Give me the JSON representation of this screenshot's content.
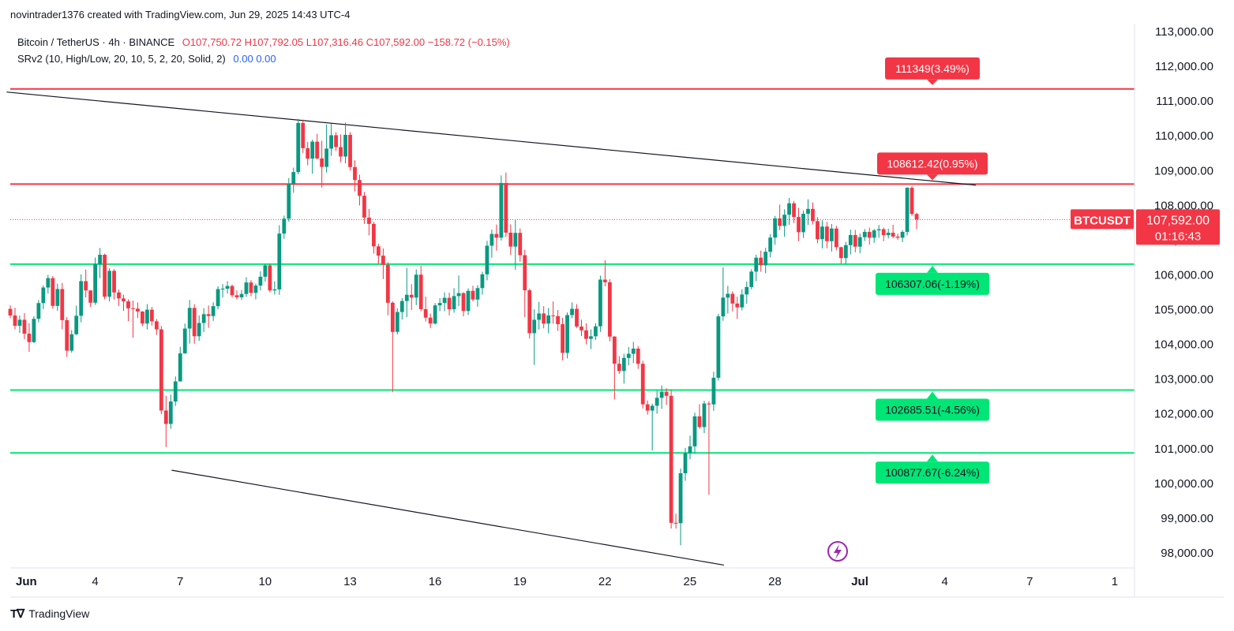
{
  "header": {
    "credit": "novintrader1376 created with TradingView.com, Jun 29, 2025 14:43 UTC-4",
    "symbol": "Bitcoin / TetherUS · 4h · BINANCE",
    "open": "O107,750.72",
    "high": "H107,792.05",
    "low": "L107,316.46",
    "close": "C107,592.00",
    "change": "−158.72 (−0.15%)",
    "indicator": "SRv2 (10, High/Low, 20, 10, 5, 2, 20, Solid, 2)",
    "ind_val1": "0.00",
    "ind_val2": "0.00"
  },
  "brand": {
    "label": "TradingView"
  },
  "colors": {
    "up": "#089981",
    "down": "#F23645",
    "support": "#00E676",
    "resistance": "#F23645",
    "trendline": "#131722"
  },
  "chart_data": {
    "type": "candlestick",
    "title": "Bitcoin / TetherUS · 4h · BINANCE",
    "xlabel": "",
    "ylabel": "",
    "ylim": [
      97500,
      113200
    ],
    "y_ticks": [
      "113,000.00",
      "112,000.00",
      "111,000.00",
      "110,000.00",
      "109,000.00",
      "108,000.00",
      "107,000.00",
      "106,000.00",
      "105,000.00",
      "104,000.00",
      "103,000.00",
      "102,000.00",
      "101,000.00",
      "100,000.00",
      "99,000.00",
      "98,000.00"
    ],
    "x_ticks": [
      "Jun",
      "4",
      "7",
      "10",
      "13",
      "16",
      "19",
      "22",
      "25",
      "28",
      "Jul",
      "4",
      "7",
      "1"
    ],
    "x_tick_days": [
      1,
      4,
      7,
      10,
      13,
      16,
      19,
      22,
      25,
      28,
      31,
      34,
      37,
      40
    ],
    "x_range_days": [
      1.0,
      40.7
    ],
    "last_price": {
      "symbol": "BTCUSDT",
      "price": "107,592.00",
      "countdown": "01:16:43",
      "value": 107592
    },
    "levels": [
      {
        "label": "111349(3.49%)",
        "value": 111349,
        "kind": "resistance"
      },
      {
        "label": "108612.42(0.95%)",
        "value": 108612.42,
        "kind": "resistance"
      },
      {
        "label": "106307.06(-1.19%)",
        "value": 106307.06,
        "kind": "support"
      },
      {
        "label": "102685.51(-4.56%)",
        "value": 102685.51,
        "kind": "support"
      },
      {
        "label": "100877.67(-6.24%)",
        "value": 100877.67,
        "kind": "support"
      }
    ],
    "trendlines": [
      {
        "name": "upper",
        "start": [
          0.87,
          111260
        ],
        "end": [
          35.1,
          108580
        ]
      },
      {
        "name": "lower",
        "start": [
          6.7,
          100380
        ],
        "end": [
          26.2,
          97650
        ]
      }
    ],
    "candle_start_day": 1.0,
    "candle_step_days": 0.1667,
    "candles": [
      [
        105022,
        105123,
        104750,
        104832
      ],
      [
        104832,
        105054,
        104433,
        104535
      ],
      [
        104535,
        104832,
        104329,
        104708
      ],
      [
        104708,
        104902,
        104152,
        104308
      ],
      [
        104308,
        104608,
        103785,
        104065
      ],
      [
        104065,
        104810,
        104040,
        104735
      ],
      [
        104735,
        105275,
        104635,
        105188
      ],
      [
        105188,
        105697,
        105013,
        105635
      ],
      [
        105635,
        106002,
        105466,
        105906
      ],
      [
        105906,
        105964,
        105026,
        105107
      ],
      [
        105107,
        105744,
        104968,
        105592
      ],
      [
        105592,
        105767,
        104434,
        104697
      ],
      [
        104697,
        104783,
        103639,
        103819
      ],
      [
        103819,
        104412,
        103760,
        104291
      ],
      [
        104291,
        105113,
        104269,
        104822
      ],
      [
        104822,
        106016,
        104637,
        105819
      ],
      [
        105819,
        106156,
        105351,
        105551
      ],
      [
        105551,
        105557,
        105077,
        105199
      ],
      [
        105199,
        106498,
        105138,
        106308
      ],
      [
        106308,
        106773,
        105904,
        106578
      ],
      [
        106578,
        106608,
        105294,
        105370
      ],
      [
        105370,
        106190,
        105233,
        106115
      ],
      [
        106115,
        106165,
        105292,
        105494
      ],
      [
        105494,
        105577,
        105107,
        105322
      ],
      [
        105322,
        105427,
        104961,
        105237
      ],
      [
        105237,
        105297,
        104673,
        105037
      ],
      [
        105037,
        105260,
        104192,
        105027
      ],
      [
        105027,
        105204,
        104757,
        104945
      ],
      [
        104945,
        104957,
        104524,
        104600
      ],
      [
        104600,
        105159,
        104428,
        104998
      ],
      [
        104998,
        105078,
        104540,
        104663
      ],
      [
        104663,
        104729,
        104275,
        104432
      ],
      [
        104432,
        104529,
        101991,
        102097
      ],
      [
        102097,
        102520,
        101047,
        101711
      ],
      [
        101711,
        102556,
        101574,
        102356
      ],
      [
        102356,
        103076,
        102230,
        102934
      ],
      [
        102934,
        103930,
        102934,
        103741
      ],
      [
        103741,
        104597,
        103731,
        104455
      ],
      [
        104455,
        105278,
        104022,
        105050
      ],
      [
        105050,
        105156,
        104017,
        104234
      ],
      [
        104234,
        104834,
        104102,
        104615
      ],
      [
        104615,
        105040,
        104356,
        104869
      ],
      [
        104869,
        105119,
        104474,
        104815
      ],
      [
        104815,
        105210,
        104676,
        105099
      ],
      [
        105099,
        105670,
        105009,
        105590
      ],
      [
        105590,
        105732,
        105349,
        105602
      ],
      [
        105602,
        105818,
        105461,
        105679
      ],
      [
        105679,
        105722,
        105349,
        105413
      ],
      [
        105413,
        105553,
        105290,
        105353
      ],
      [
        105353,
        105568,
        105273,
        105450
      ],
      [
        105450,
        105934,
        105369,
        105781
      ],
      [
        105781,
        105848,
        105384,
        105482
      ],
      [
        105482,
        105745,
        105295,
        105691
      ],
      [
        105691,
        106101,
        105554,
        105946
      ],
      [
        105946,
        106315,
        105806,
        106274
      ],
      [
        106274,
        106326,
        105498,
        105552
      ],
      [
        105552,
        105813,
        105434,
        105583
      ],
      [
        105583,
        107427,
        105425,
        107187
      ],
      [
        107187,
        107703,
        107038,
        107617
      ],
      [
        107617,
        108785,
        107532,
        108629
      ],
      [
        108629,
        109084,
        108362,
        108958
      ],
      [
        108958,
        110487,
        108892,
        110369
      ],
      [
        110369,
        110467,
        109509,
        109646
      ],
      [
        109646,
        109825,
        109154,
        109344
      ],
      [
        109344,
        109891,
        108908,
        109832
      ],
      [
        109832,
        110060,
        109323,
        109350
      ],
      [
        109350,
        109860,
        108510,
        109106
      ],
      [
        109106,
        110324,
        108942,
        109632
      ],
      [
        109632,
        110350,
        109427,
        110017
      ],
      [
        110017,
        110104,
        109565,
        109676
      ],
      [
        109676,
        110041,
        109239,
        109404
      ],
      [
        109404,
        110380,
        109208,
        110029
      ],
      [
        110029,
        110106,
        108999,
        109101
      ],
      [
        109101,
        109295,
        108401,
        108727
      ],
      [
        108727,
        108881,
        107997,
        108275
      ],
      [
        108275,
        108388,
        107467,
        107648
      ],
      [
        107648,
        107896,
        107135,
        107466
      ],
      [
        107466,
        107524,
        106612,
        106820
      ],
      [
        106820,
        106895,
        106312,
        106552
      ],
      [
        106552,
        106760,
        105877,
        106287
      ],
      [
        106287,
        106365,
        104838,
        105198
      ],
      [
        105198,
        105242,
        102622,
        104359
      ],
      [
        104359,
        105034,
        104287,
        104931
      ],
      [
        104931,
        105329,
        104715,
        105247
      ],
      [
        105247,
        106201,
        104782,
        105426
      ],
      [
        105426,
        105733,
        104988,
        105346
      ],
      [
        105346,
        106160,
        105132,
        106006
      ],
      [
        106006,
        106263,
        104952,
        105014
      ],
      [
        105014,
        105373,
        104657,
        104769
      ],
      [
        104769,
        104885,
        104470,
        104599
      ],
      [
        104599,
        105189,
        104573,
        105122
      ],
      [
        105122,
        105333,
        104954,
        105191
      ],
      [
        105191,
        105494,
        104952,
        105339
      ],
      [
        105339,
        105489,
        104834,
        105011
      ],
      [
        105011,
        105617,
        104909,
        105389
      ],
      [
        105389,
        105982,
        105104,
        105474
      ],
      [
        105474,
        105500,
        104806,
        104961
      ],
      [
        104961,
        105611,
        104844,
        105540
      ],
      [
        105540,
        105685,
        105236,
        105290
      ],
      [
        105290,
        105701,
        105085,
        105619
      ],
      [
        105619,
        106091,
        105432,
        106015
      ],
      [
        106015,
        106980,
        105842,
        106839
      ],
      [
        106839,
        107300,
        106496,
        107177
      ],
      [
        107177,
        107448,
        106698,
        107070
      ],
      [
        107070,
        108861,
        106987,
        108643
      ],
      [
        108643,
        108945,
        107087,
        107214
      ],
      [
        107214,
        107452,
        106573,
        106814
      ],
      [
        106814,
        107580,
        106143,
        107208
      ],
      [
        107208,
        107335,
        106379,
        106566
      ],
      [
        106566,
        106721,
        104786,
        105556
      ],
      [
        105556,
        105605,
        104167,
        104322
      ],
      [
        104322,
        105007,
        103408,
        104708
      ],
      [
        104708,
        105222,
        104427,
        104889
      ],
      [
        104889,
        105100,
        104460,
        104597
      ],
      [
        104597,
        105045,
        104321,
        104833
      ],
      [
        104833,
        105236,
        104595,
        104814
      ],
      [
        104814,
        104988,
        104386,
        104582
      ],
      [
        104582,
        104764,
        103541,
        103755
      ],
      [
        103755,
        104919,
        103597,
        104843
      ],
      [
        104843,
        105207,
        104751,
        105023
      ],
      [
        105023,
        105157,
        104471,
        104513
      ],
      [
        104513,
        104710,
        104238,
        104403
      ],
      [
        104403,
        104603,
        103999,
        104159
      ],
      [
        104159,
        104432,
        103865,
        104233
      ],
      [
        104233,
        104610,
        104129,
        104519
      ],
      [
        104519,
        105978,
        104358,
        105863
      ],
      [
        105863,
        106417,
        105670,
        105787
      ],
      [
        105787,
        105875,
        104085,
        104224
      ],
      [
        104224,
        104237,
        102416,
        103443
      ],
      [
        103443,
        103662,
        103148,
        103234
      ],
      [
        103234,
        103730,
        102871,
        103610
      ],
      [
        103610,
        103925,
        103401,
        103729
      ],
      [
        103729,
        104068,
        103460,
        103878
      ],
      [
        103878,
        103951,
        103297,
        103441
      ],
      [
        103441,
        103528,
        102155,
        102275
      ],
      [
        102275,
        102384,
        101978,
        102095
      ],
      [
        102095,
        102292,
        100947,
        102234
      ],
      [
        102234,
        102669,
        102005,
        102462
      ],
      [
        102462,
        102818,
        102142,
        102635
      ],
      [
        102635,
        102736,
        102258,
        102520
      ],
      [
        102520,
        102697,
        98704,
        98866
      ],
      [
        98866,
        99128,
        98702,
        98856
      ],
      [
        98856,
        100425,
        98220,
        100292
      ],
      [
        100292,
        101022,
        100077,
        100870
      ],
      [
        100870,
        101372,
        100695,
        101066
      ],
      [
        101066,
        102035,
        100861,
        101930
      ],
      [
        101930,
        102279,
        101576,
        101621
      ],
      [
        101621,
        102377,
        101448,
        102298
      ],
      [
        102298,
        102371,
        99674,
        102273
      ],
      [
        102273,
        103211,
        102090,
        103039
      ],
      [
        103039,
        104879,
        102957,
        104806
      ],
      [
        104806,
        106210,
        104678,
        105346
      ],
      [
        105346,
        105683,
        104887,
        105455
      ],
      [
        105455,
        105528,
        104946,
        105175
      ],
      [
        105175,
        105373,
        104731,
        105064
      ],
      [
        105064,
        105586,
        104979,
        105435
      ],
      [
        105435,
        105809,
        105171,
        105651
      ],
      [
        105651,
        106160,
        105588,
        106093
      ],
      [
        106093,
        106580,
        105817,
        106494
      ],
      [
        106494,
        106698,
        106089,
        106275
      ],
      [
        106275,
        106775,
        106044,
        106664
      ],
      [
        106664,
        107171,
        106502,
        107072
      ],
      [
        107072,
        107696,
        106866,
        107625
      ],
      [
        107625,
        108022,
        107289,
        107409
      ],
      [
        107409,
        107885,
        107095,
        107731
      ],
      [
        107731,
        108213,
        107436,
        108059
      ],
      [
        108059,
        108127,
        107491,
        107663
      ],
      [
        107663,
        107929,
        106970,
        107228
      ],
      [
        107228,
        107854,
        107062,
        107757
      ],
      [
        107757,
        108173,
        107436,
        107899
      ],
      [
        107899,
        108083,
        107450,
        107546
      ],
      [
        107546,
        107659,
        106911,
        107028
      ],
      [
        107028,
        107569,
        106763,
        107389
      ],
      [
        107389,
        107523,
        106767,
        106969
      ],
      [
        106969,
        107462,
        106672,
        107332
      ],
      [
        107332,
        107407,
        106707,
        106796
      ],
      [
        106796,
        106811,
        106320,
        106483
      ],
      [
        106483,
        106950,
        106310,
        106855
      ],
      [
        106855,
        107301,
        106588,
        107146
      ],
      [
        107146,
        107294,
        106649,
        106812
      ],
      [
        106812,
        107189,
        106625,
        107084
      ],
      [
        107084,
        107319,
        106974,
        107237
      ],
      [
        107237,
        107359,
        106869,
        107069
      ],
      [
        107069,
        107320,
        106923,
        107280
      ],
      [
        107280,
        107435,
        107068,
        107313
      ],
      [
        107313,
        107357,
        106968,
        107143
      ],
      [
        107143,
        107327,
        107048,
        107211
      ],
      [
        107211,
        107440,
        107053,
        107101
      ],
      [
        107101,
        107185,
        107007,
        107069
      ],
      [
        107069,
        107287,
        106944,
        107236
      ],
      [
        107236,
        108525,
        107136,
        108505
      ],
      [
        108505,
        108551,
        107701,
        107751
      ],
      [
        107750.72,
        107792.05,
        107316.46,
        107592
      ]
    ]
  }
}
